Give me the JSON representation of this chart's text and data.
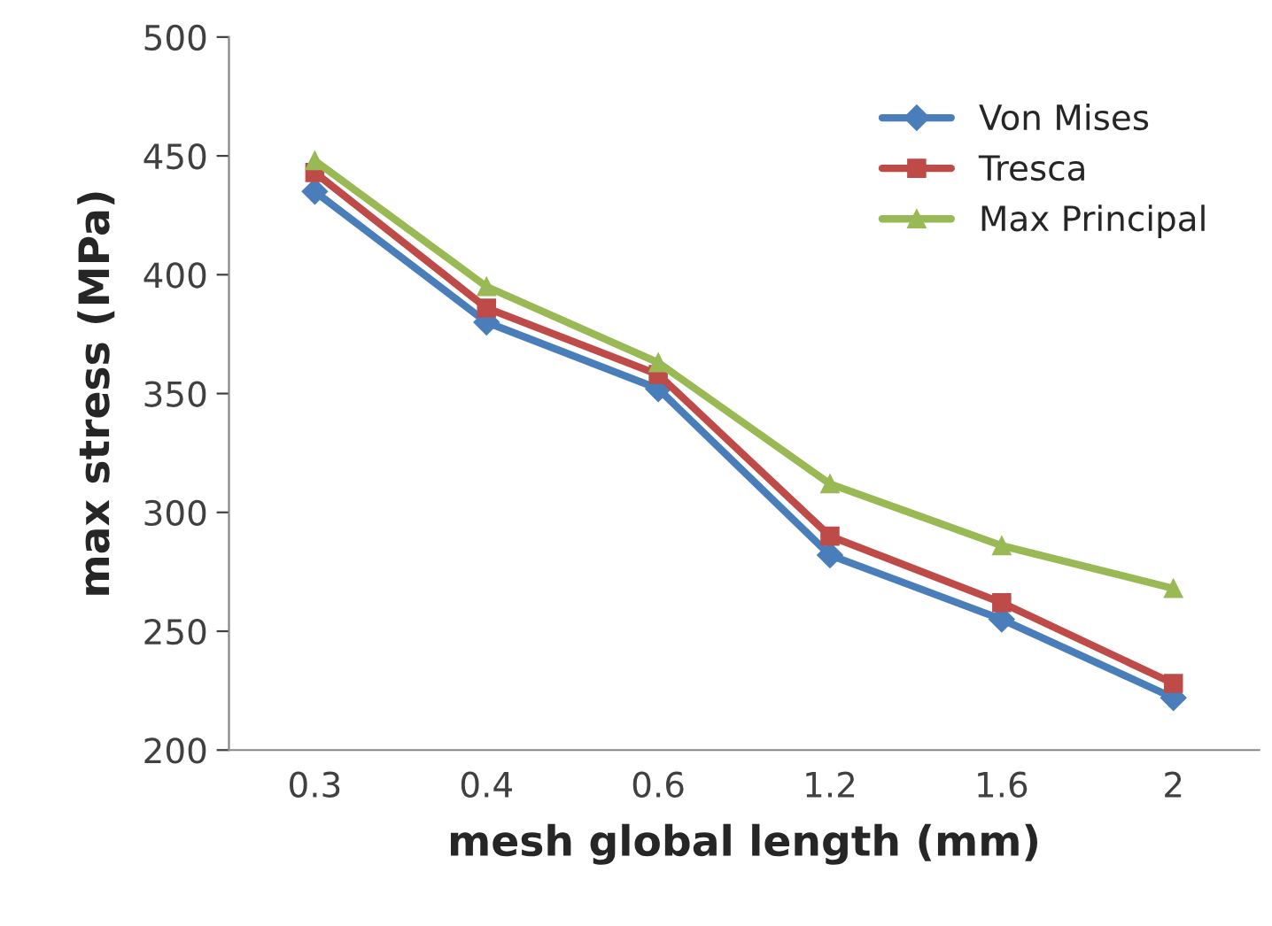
{
  "chart_data": {
    "type": "line",
    "xlabel": "mesh global length (mm)",
    "ylabel": "max stress (MPa)",
    "categories": [
      "0.3",
      "0.4",
      "0.6",
      "1.2",
      "1.6",
      "2"
    ],
    "series": [
      {
        "name": "Von Mises",
        "color": "#4a7ebb",
        "marker": "diamond",
        "values": [
          435,
          380,
          352,
          282,
          255,
          222
        ]
      },
      {
        "name": "Tresca",
        "color": "#be4b48",
        "marker": "square",
        "values": [
          443,
          386,
          358,
          290,
          262,
          228
        ]
      },
      {
        "name": "Max Principal",
        "color": "#98b954",
        "marker": "triangle",
        "values": [
          448,
          395,
          363,
          312,
          286,
          268
        ]
      }
    ],
    "ylim": [
      200,
      500
    ],
    "yticks": [
      200,
      250,
      300,
      350,
      400,
      450,
      500
    ],
    "grid": false,
    "legend": "top right",
    "line_style": "solid"
  }
}
